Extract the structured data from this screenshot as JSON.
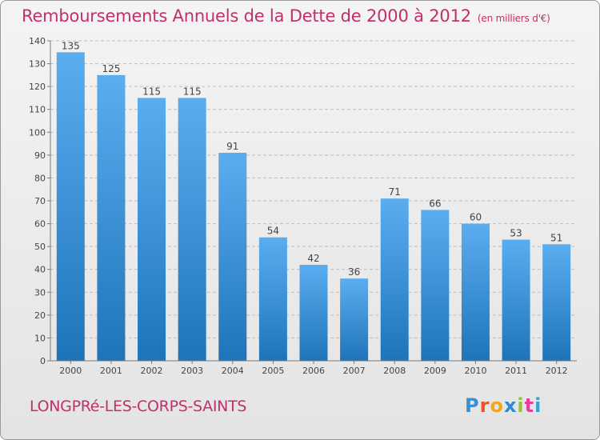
{
  "header": {
    "title": "Remboursements Annuels de la Dette de 2000 à 2012",
    "unit": "(en milliers d'€)"
  },
  "footer": {
    "commune": "LONGPRé-LES-CORPS-SAINTS",
    "logo_letters": [
      "P",
      "r",
      "o",
      "x",
      "i",
      "t",
      "i"
    ],
    "logo_colors": [
      "#3a8fd0",
      "#e9542c",
      "#f3a51b",
      "#2f8ad1",
      "#8cc63f",
      "#e63f9b",
      "#29a8d7"
    ]
  },
  "chart_data": {
    "type": "bar",
    "categories": [
      "2000",
      "2001",
      "2002",
      "2003",
      "2004",
      "2005",
      "2006",
      "2007",
      "2008",
      "2009",
      "2010",
      "2011",
      "2012"
    ],
    "values": [
      135,
      125,
      115,
      115,
      91,
      54,
      42,
      36,
      71,
      66,
      60,
      53,
      51
    ],
    "title": "Remboursements Annuels de la Dette de 2000 à 2012",
    "xlabel": "",
    "ylabel": "",
    "ylim": [
      0,
      140
    ],
    "yticks": [
      0,
      10,
      20,
      30,
      40,
      50,
      60,
      70,
      80,
      90,
      100,
      110,
      120,
      130,
      140
    ],
    "grid": true,
    "colors": {
      "bar_top": "#5aaef0",
      "bar_bottom": "#1f73b8",
      "grid": "#bdbdbd",
      "axis": "#7a7a7a"
    }
  }
}
